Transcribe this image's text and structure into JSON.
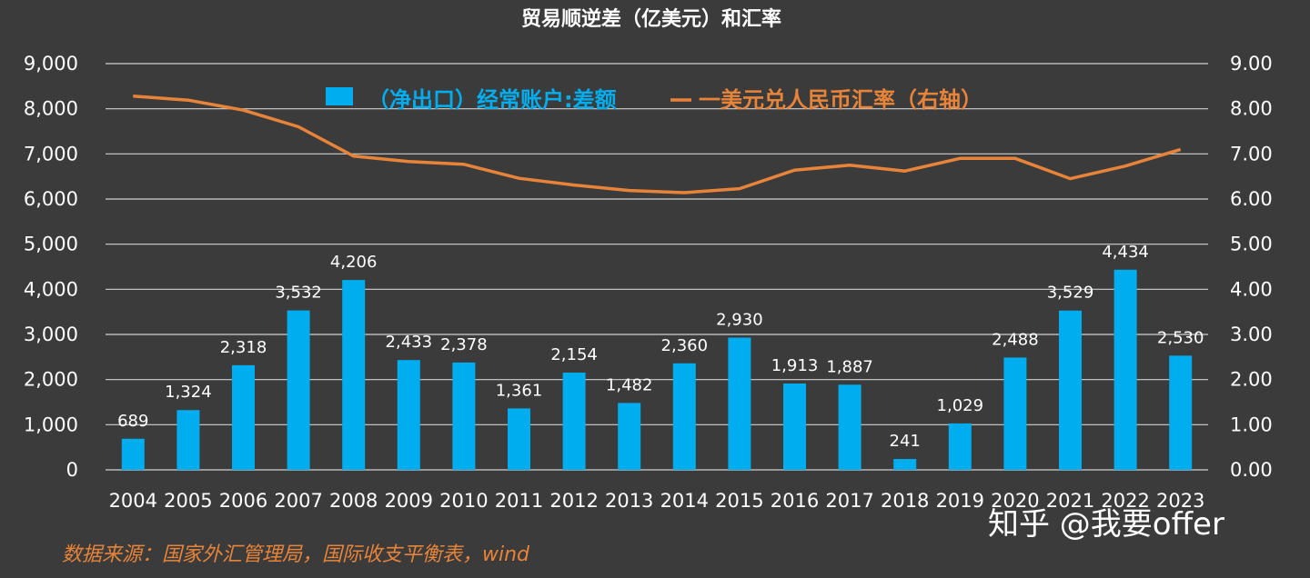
{
  "chart_data": {
    "type": "bar+line",
    "title": "贸易顺逆差（亿美元）和汇率",
    "categories": [
      "2004",
      "2005",
      "2006",
      "2007",
      "2008",
      "2009",
      "2010",
      "2011",
      "2012",
      "2013",
      "2014",
      "2015",
      "2016",
      "2017",
      "2018",
      "2019",
      "2020",
      "2021",
      "2022",
      "2023"
    ],
    "series": [
      {
        "name": "（净出口）经常账户:差额",
        "type": "bar",
        "axis": "left",
        "color": "#00aeef",
        "values": [
          689,
          1324,
          2318,
          3532,
          4206,
          2433,
          2378,
          1361,
          2154,
          1482,
          2360,
          2930,
          1913,
          1887,
          241,
          1029,
          2488,
          3529,
          4434,
          2530
        ],
        "labels": [
          "689",
          "1,324",
          "2,318",
          "3,532",
          "4,206",
          "2,433",
          "2,378",
          "1,361",
          "2,154",
          "1,482",
          "2,360",
          "2,930",
          "1,913",
          "1,887",
          "241",
          "1,029",
          "2,488",
          "3,529",
          "4,434",
          "2,530"
        ]
      },
      {
        "name": "一美元兑人民币汇率（右轴）",
        "type": "line",
        "axis": "right",
        "color": "#e8843a",
        "values": [
          8.28,
          8.19,
          7.97,
          7.6,
          6.95,
          6.83,
          6.77,
          6.46,
          6.31,
          6.19,
          6.14,
          6.23,
          6.64,
          6.75,
          6.62,
          6.9,
          6.9,
          6.45,
          6.73,
          7.1
        ]
      }
    ],
    "y_left": {
      "lim": [
        0,
        9000
      ],
      "ticks": [
        "0",
        "1,000",
        "2,000",
        "3,000",
        "4,000",
        "5,000",
        "6,000",
        "7,000",
        "8,000",
        "9,000"
      ]
    },
    "y_right": {
      "lim": [
        0,
        9
      ],
      "ticks": [
        "0.00",
        "1.00",
        "2.00",
        "3.00",
        "4.00",
        "5.00",
        "6.00",
        "7.00",
        "8.00",
        "9.00"
      ]
    },
    "grid": true,
    "legend_position": "top-center"
  },
  "source": "数据来源：国家外汇管理局，国际收支平衡表，wind",
  "watermark": "知乎 @我要offer",
  "colors": {
    "background": "#3b3b3b",
    "bar": "#00aeef",
    "line": "#e8843a",
    "grid": "#d0d0d0",
    "source_text": "#e8843a",
    "text": "#ffffff"
  }
}
